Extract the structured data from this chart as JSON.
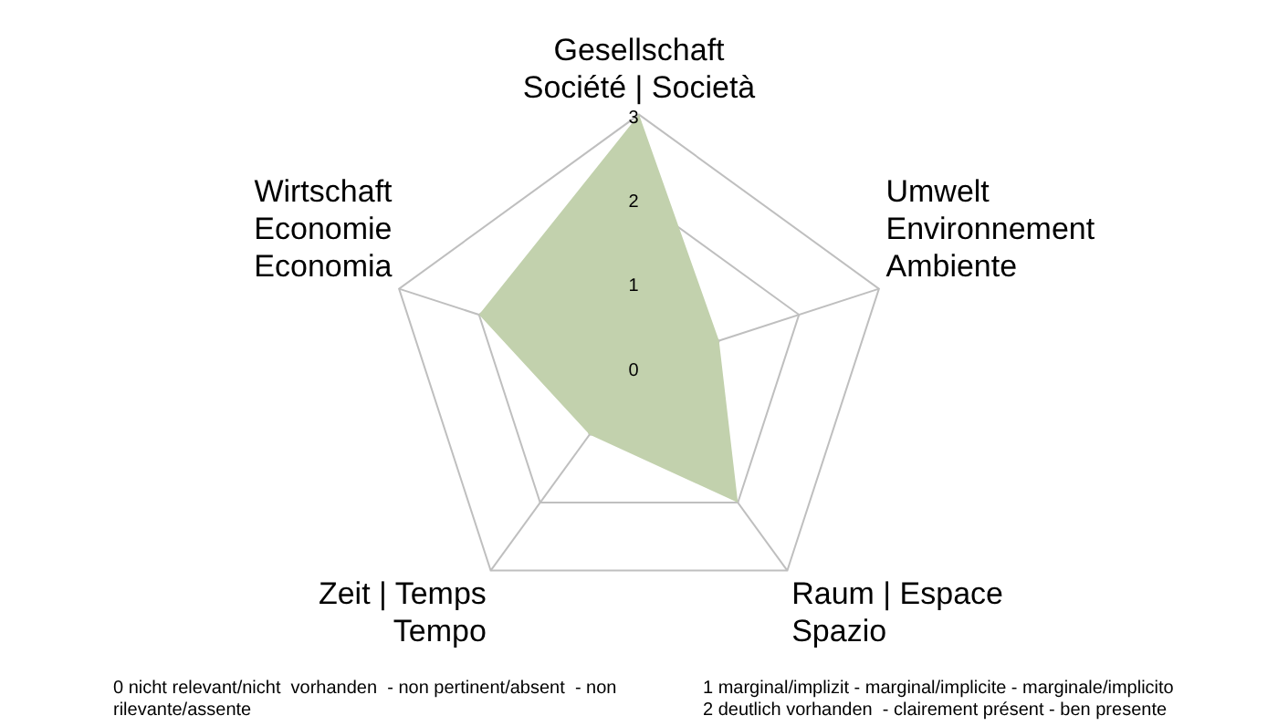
{
  "chart_data": {
    "type": "radar",
    "categories": [
      "Gesellschaft\nSociété | Società",
      "Umwelt\nEnvironnement\nAmbiente",
      "Raum | Espace\nSpazio",
      "Zeit | Temps\nTempo",
      "Wirtschaft\nEconomie\nEconomia"
    ],
    "series": [
      {
        "color": "#c2d1ad",
        "values": [
          3,
          1,
          2,
          1,
          2
        ]
      }
    ],
    "ylim": [
      0,
      3
    ],
    "yticks": [
      0,
      1,
      2,
      3
    ],
    "grid": true,
    "legend": false,
    "marker": "none",
    "annotations": [
      "0 nicht relevant/nicht  vorhanden  - non pertinent/absent  - non rilevante/assente",
      "1 marginal/implizit - marginal/implicite - marginale/implicito\n2 deutlich vorhanden  - clairement présent - ben presente"
    ]
  }
}
